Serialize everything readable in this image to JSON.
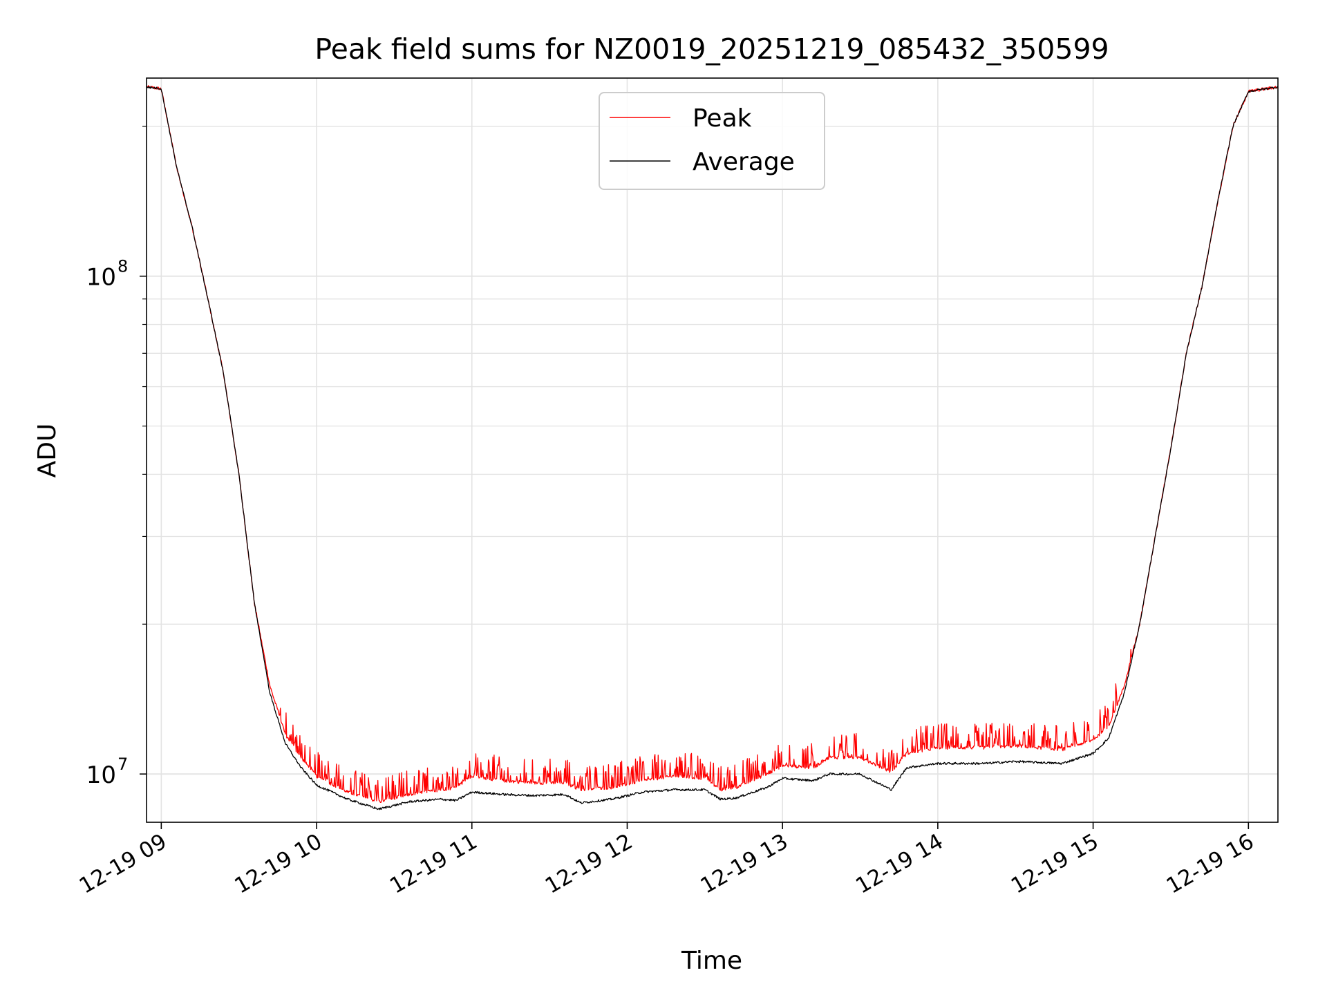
{
  "chart_data": {
    "type": "line",
    "title": "Peak field sums for NZ0019_20251219_085432_350599",
    "xlabel": "Time",
    "ylabel": "ADU",
    "yscale": "log",
    "ylim": [
      8000000,
      250000000
    ],
    "xlim_hours": [
      8.905,
      16.19
    ],
    "grid": true,
    "legend_position": "upper center",
    "x_ticks": [
      {
        "hour": 9,
        "label": "12-19 09"
      },
      {
        "hour": 10,
        "label": "12-19 10"
      },
      {
        "hour": 11,
        "label": "12-19 11"
      },
      {
        "hour": 12,
        "label": "12-19 12"
      },
      {
        "hour": 13,
        "label": "12-19 13"
      },
      {
        "hour": 14,
        "label": "12-19 14"
      },
      {
        "hour": 15,
        "label": "12-19 15"
      },
      {
        "hour": 16,
        "label": "12-19 16"
      }
    ],
    "y_ticks": [
      {
        "value": 10000000,
        "base": "10",
        "exp": "7"
      },
      {
        "value": 100000000,
        "base": "10",
        "exp": "8"
      }
    ],
    "series": [
      {
        "name": "Peak",
        "color": "#ff0000",
        "noise": true,
        "points": [
          [
            8.905,
            240000000
          ],
          [
            9.0,
            238000000
          ],
          [
            9.1,
            165000000
          ],
          [
            9.2,
            125000000
          ],
          [
            9.3,
            90000000
          ],
          [
            9.4,
            64000000
          ],
          [
            9.5,
            40000000
          ],
          [
            9.6,
            22000000
          ],
          [
            9.7,
            15000000
          ],
          [
            9.8,
            12000000
          ],
          [
            9.9,
            10800000
          ],
          [
            10.0,
            9900000
          ],
          [
            10.2,
            9200000
          ],
          [
            10.4,
            8800000
          ],
          [
            10.6,
            9100000
          ],
          [
            10.8,
            9300000
          ],
          [
            10.9,
            9400000
          ],
          [
            11.0,
            9900000
          ],
          [
            11.2,
            9700000
          ],
          [
            11.4,
            9600000
          ],
          [
            11.6,
            9600000
          ],
          [
            11.7,
            9300000
          ],
          [
            11.9,
            9400000
          ],
          [
            12.1,
            9700000
          ],
          [
            12.3,
            9900000
          ],
          [
            12.5,
            9800000
          ],
          [
            12.6,
            9300000
          ],
          [
            12.7,
            9400000
          ],
          [
            12.9,
            10000000
          ],
          [
            13.0,
            10400000
          ],
          [
            13.2,
            10300000
          ],
          [
            13.3,
            10800000
          ],
          [
            13.5,
            10800000
          ],
          [
            13.7,
            10100000
          ],
          [
            13.8,
            11000000
          ],
          [
            14.0,
            11300000
          ],
          [
            14.3,
            11300000
          ],
          [
            14.5,
            11400000
          ],
          [
            14.8,
            11200000
          ],
          [
            15.0,
            11700000
          ],
          [
            15.1,
            12500000
          ],
          [
            15.2,
            15000000
          ],
          [
            15.3,
            20000000
          ],
          [
            15.4,
            30000000
          ],
          [
            15.5,
            45000000
          ],
          [
            15.6,
            70000000
          ],
          [
            15.7,
            95000000
          ],
          [
            15.8,
            140000000
          ],
          [
            15.9,
            200000000
          ],
          [
            16.0,
            235000000
          ],
          [
            16.19,
            240000000
          ]
        ]
      },
      {
        "name": "Average",
        "color": "#000000",
        "noise": false,
        "points": [
          [
            8.905,
            240000000
          ],
          [
            9.0,
            238000000
          ],
          [
            9.1,
            165000000
          ],
          [
            9.2,
            125000000
          ],
          [
            9.3,
            90000000
          ],
          [
            9.4,
            64000000
          ],
          [
            9.5,
            40000000
          ],
          [
            9.6,
            22000000
          ],
          [
            9.7,
            14500000
          ],
          [
            9.8,
            11500000
          ],
          [
            9.9,
            10300000
          ],
          [
            10.0,
            9500000
          ],
          [
            10.2,
            8900000
          ],
          [
            10.4,
            8500000
          ],
          [
            10.6,
            8800000
          ],
          [
            10.8,
            8900000
          ],
          [
            10.9,
            8850000
          ],
          [
            11.0,
            9200000
          ],
          [
            11.2,
            9100000
          ],
          [
            11.4,
            9050000
          ],
          [
            11.6,
            9100000
          ],
          [
            11.7,
            8750000
          ],
          [
            11.9,
            8900000
          ],
          [
            12.1,
            9200000
          ],
          [
            12.3,
            9300000
          ],
          [
            12.5,
            9300000
          ],
          [
            12.6,
            8900000
          ],
          [
            12.7,
            8950000
          ],
          [
            12.9,
            9400000
          ],
          [
            13.0,
            9800000
          ],
          [
            13.2,
            9700000
          ],
          [
            13.3,
            10000000
          ],
          [
            13.5,
            10000000
          ],
          [
            13.7,
            9300000
          ],
          [
            13.8,
            10300000
          ],
          [
            14.0,
            10500000
          ],
          [
            14.3,
            10500000
          ],
          [
            14.5,
            10600000
          ],
          [
            14.8,
            10500000
          ],
          [
            15.0,
            11000000
          ],
          [
            15.1,
            11800000
          ],
          [
            15.2,
            14500000
          ],
          [
            15.3,
            20000000
          ],
          [
            15.4,
            30000000
          ],
          [
            15.5,
            45000000
          ],
          [
            15.6,
            70000000
          ],
          [
            15.7,
            95000000
          ],
          [
            15.8,
            140000000
          ],
          [
            15.9,
            200000000
          ],
          [
            16.0,
            235000000
          ],
          [
            16.19,
            240000000
          ]
        ]
      }
    ]
  }
}
